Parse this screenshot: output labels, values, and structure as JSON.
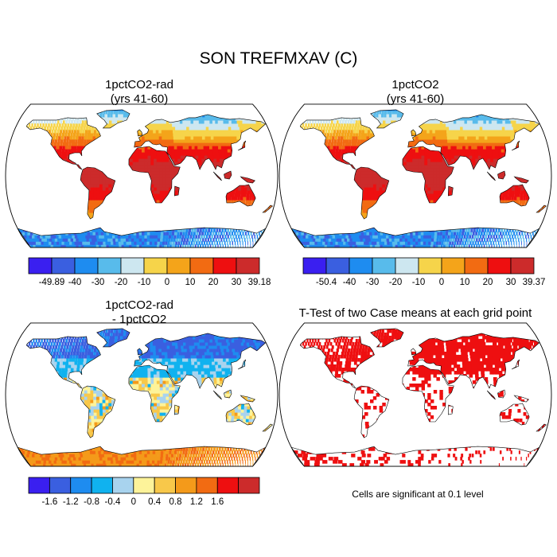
{
  "figure": {
    "title": "SON TREFMXAV (C)",
    "significance_note": "Cells are significant at 0.1 level"
  },
  "panels": [
    {
      "title_line1": "1pctCO2-rad",
      "title_line2": "(yrs 41-60)",
      "field": "absolute"
    },
    {
      "title_line1": "1pctCO2",
      "title_line2": "(yrs 41-60)",
      "field": "absolute"
    },
    {
      "title_line1": "1pctCO2-rad",
      "title_line2": "- 1pctCO2",
      "field": "difference"
    },
    {
      "title_line1": "T-Test of two Case means at each grid point",
      "title_line2": "",
      "field": "significance"
    }
  ],
  "colorbars": [
    {
      "name": "1pctCO2-rad",
      "labels": [
        "-49.89",
        "-40",
        "-30",
        "-20",
        "-10",
        "0",
        "10",
        "20",
        "30",
        "39.18"
      ],
      "colors": [
        "#3a1ff0",
        "#3a5fe0",
        "#1e8cf0",
        "#58bbeb",
        "#cde7f0",
        "#f6d44a",
        "#f4a41a",
        "#f26b12",
        "#ee0f10",
        "#cc2b2b"
      ]
    },
    {
      "name": "1pctCO2",
      "labels": [
        "-50.4",
        "-40",
        "-30",
        "-20",
        "-10",
        "0",
        "10",
        "20",
        "30",
        "39.37"
      ],
      "colors": [
        "#3a1ff0",
        "#3a5fe0",
        "#1e8cf0",
        "#58bbeb",
        "#cde7f0",
        "#f6d44a",
        "#f4a41a",
        "#f26b12",
        "#ee0f10",
        "#cc2b2b"
      ]
    },
    {
      "name": "difference",
      "labels": [
        "-1.6",
        "-1.2",
        "-0.8",
        "-0.4",
        "0",
        "0.4",
        "0.8",
        "1.2",
        "1.6"
      ],
      "colors": [
        "#3a1ff0",
        "#3a5fe0",
        "#1e8cf0",
        "#10b2ef",
        "#a8d3ee",
        "#fdf39a",
        "#f8c84a",
        "#f49a1a",
        "#f26b12",
        "#ee0f10",
        "#cc2b2b"
      ]
    }
  ]
}
